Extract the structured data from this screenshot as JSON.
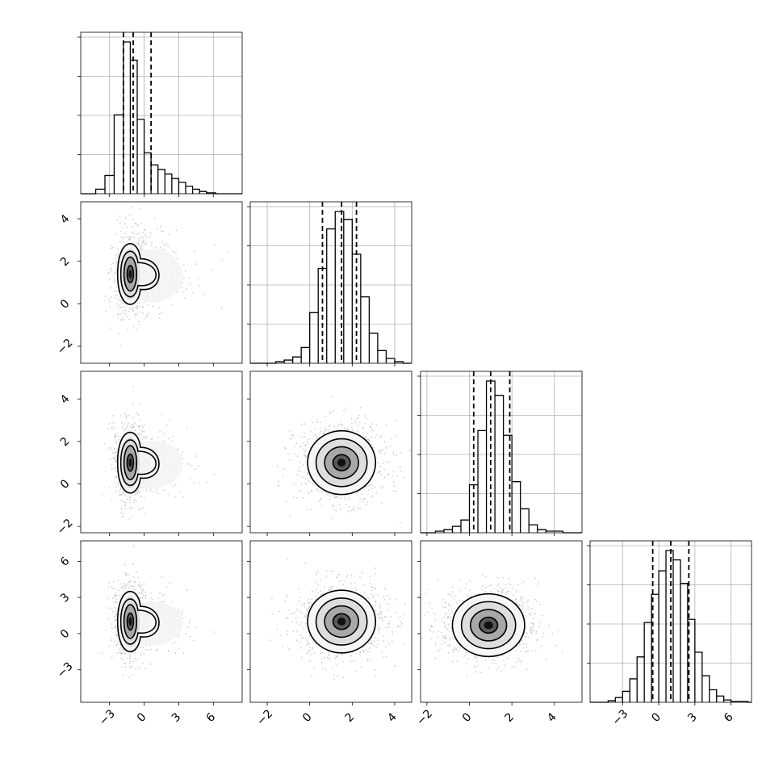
{
  "chart_data": {
    "type": "corner",
    "grid": true,
    "dims": [
      {
        "range": [
          -5.5,
          8.5
        ],
        "ticks": [
          -3,
          0,
          3,
          6
        ],
        "tick_labels": [
          "−3",
          "0",
          "3",
          "6"
        ],
        "quantiles": [
          -1.8,
          -0.95,
          0.6
        ],
        "hist_bins": [
          {
            "x0": -4.2,
            "x1": -3.4,
            "h": 0.03
          },
          {
            "x0": -3.4,
            "x1": -2.6,
            "h": 0.12
          },
          {
            "x0": -2.6,
            "x1": -1.8,
            "h": 0.52
          },
          {
            "x0": -1.8,
            "x1": -1.2,
            "h": 1.0
          },
          {
            "x0": -1.2,
            "x1": -0.6,
            "h": 0.88
          },
          {
            "x0": -0.6,
            "x1": 0.0,
            "h": 0.49
          },
          {
            "x0": 0.0,
            "x1": 0.6,
            "h": 0.27
          },
          {
            "x0": 0.6,
            "x1": 1.2,
            "h": 0.19
          },
          {
            "x0": 1.2,
            "x1": 1.8,
            "h": 0.16
          },
          {
            "x0": 1.8,
            "x1": 2.4,
            "h": 0.13
          },
          {
            "x0": 2.4,
            "x1": 3.0,
            "h": 0.1
          },
          {
            "x0": 3.0,
            "x1": 3.6,
            "h": 0.075
          },
          {
            "x0": 3.6,
            "x1": 4.2,
            "h": 0.05
          },
          {
            "x0": 4.2,
            "x1": 4.8,
            "h": 0.03
          },
          {
            "x0": 4.8,
            "x1": 5.4,
            "h": 0.015
          },
          {
            "x0": 5.4,
            "x1": 6.2,
            "h": 0.006
          }
        ]
      },
      {
        "range": [
          -2.8,
          4.8
        ],
        "ticks": [
          -2,
          0,
          2,
          4
        ],
        "tick_labels": [
          "−2",
          "0",
          "2",
          "4"
        ],
        "quantiles": [
          0.6,
          1.5,
          2.2
        ],
        "hist_bins": [
          {
            "x0": -1.6,
            "x1": -1.2,
            "h": 0.01
          },
          {
            "x0": -1.2,
            "x1": -0.8,
            "h": 0.02
          },
          {
            "x0": -0.8,
            "x1": -0.4,
            "h": 0.04
          },
          {
            "x0": -0.4,
            "x1": 0.0,
            "h": 0.1
          },
          {
            "x0": 0.0,
            "x1": 0.4,
            "h": 0.32
          },
          {
            "x0": 0.4,
            "x1": 0.8,
            "h": 0.6
          },
          {
            "x0": 0.8,
            "x1": 1.2,
            "h": 0.85
          },
          {
            "x0": 1.2,
            "x1": 1.6,
            "h": 0.96
          },
          {
            "x0": 1.6,
            "x1": 2.0,
            "h": 0.91
          },
          {
            "x0": 2.0,
            "x1": 2.4,
            "h": 0.69
          },
          {
            "x0": 2.4,
            "x1": 2.8,
            "h": 0.42
          },
          {
            "x0": 2.8,
            "x1": 3.2,
            "h": 0.19
          },
          {
            "x0": 3.2,
            "x1": 3.6,
            "h": 0.08
          },
          {
            "x0": 3.6,
            "x1": 4.0,
            "h": 0.03
          },
          {
            "x0": 4.0,
            "x1": 4.4,
            "h": 0.01
          }
        ]
      },
      {
        "range": [
          -2.3,
          5.3
        ],
        "ticks": [
          -2,
          0,
          2,
          4
        ],
        "tick_labels": [
          "−2",
          "0",
          "2",
          "4"
        ],
        "quantiles": [
          0.2,
          1.0,
          1.9
        ],
        "hist_bins": [
          {
            "x0": -1.6,
            "x1": -1.2,
            "h": 0.01
          },
          {
            "x0": -1.2,
            "x1": -0.8,
            "h": 0.02
          },
          {
            "x0": -0.8,
            "x1": -0.4,
            "h": 0.04
          },
          {
            "x0": -0.4,
            "x1": 0.0,
            "h": 0.08
          },
          {
            "x0": 0.0,
            "x1": 0.4,
            "h": 0.3
          },
          {
            "x0": 0.4,
            "x1": 0.8,
            "h": 0.64
          },
          {
            "x0": 0.8,
            "x1": 1.2,
            "h": 0.95
          },
          {
            "x0": 1.2,
            "x1": 1.6,
            "h": 0.86
          },
          {
            "x0": 1.6,
            "x1": 2.0,
            "h": 0.61
          },
          {
            "x0": 2.0,
            "x1": 2.4,
            "h": 0.32
          },
          {
            "x0": 2.4,
            "x1": 2.8,
            "h": 0.15
          },
          {
            "x0": 2.8,
            "x1": 3.2,
            "h": 0.05
          },
          {
            "x0": 3.2,
            "x1": 3.6,
            "h": 0.02
          },
          {
            "x0": 3.6,
            "x1": 4.4,
            "h": 0.01
          }
        ]
      },
      {
        "range": [
          -5.7,
          7.7
        ],
        "ticks": [
          -3,
          0,
          3,
          6
        ],
        "tick_labels": [
          "−3",
          "0",
          "3",
          "6"
        ],
        "quantiles": [
          -0.5,
          1.0,
          2.5
        ],
        "hist_bins": [
          {
            "x0": -4.2,
            "x1": -3.6,
            "h": 0.01
          },
          {
            "x0": -3.6,
            "x1": -3.0,
            "h": 0.03
          },
          {
            "x0": -3.0,
            "x1": -2.4,
            "h": 0.07
          },
          {
            "x0": -2.4,
            "x1": -1.8,
            "h": 0.15
          },
          {
            "x0": -1.8,
            "x1": -1.2,
            "h": 0.29
          },
          {
            "x0": -1.2,
            "x1": -0.6,
            "h": 0.51
          },
          {
            "x0": -0.6,
            "x1": 0.0,
            "h": 0.69
          },
          {
            "x0": 0.0,
            "x1": 0.6,
            "h": 0.84
          },
          {
            "x0": 0.6,
            "x1": 1.2,
            "h": 0.97
          },
          {
            "x0": 1.2,
            "x1": 1.8,
            "h": 0.91
          },
          {
            "x0": 1.8,
            "x1": 2.4,
            "h": 0.76
          },
          {
            "x0": 2.4,
            "x1": 3.0,
            "h": 0.53
          },
          {
            "x0": 3.0,
            "x1": 3.6,
            "h": 0.32
          },
          {
            "x0": 3.6,
            "x1": 4.2,
            "h": 0.17
          },
          {
            "x0": 4.2,
            "x1": 4.8,
            "h": 0.08
          },
          {
            "x0": 4.8,
            "x1": 5.4,
            "h": 0.04
          },
          {
            "x0": 5.4,
            "x1": 6.0,
            "h": 0.015
          },
          {
            "x0": 6.0,
            "x1": 7.4,
            "h": 0.005
          }
        ]
      }
    ],
    "pairs": [
      {
        "row": 1,
        "col": 0,
        "center": [
          -1.2,
          1.4
        ],
        "sigma": [
          0.55,
          0.8
        ],
        "tail": {
          "dir": "x",
          "extent": 3.5,
          "spread": 0.9
        }
      },
      {
        "row": 2,
        "col": 0,
        "center": [
          -1.2,
          1.0
        ],
        "sigma": [
          0.55,
          0.8
        ],
        "tail": {
          "dir": "x",
          "extent": 3.5,
          "spread": 0.8
        }
      },
      {
        "row": 2,
        "col": 1,
        "center": [
          1.5,
          1.0
        ],
        "sigma": [
          0.8,
          0.75
        ]
      },
      {
        "row": 3,
        "col": 0,
        "center": [
          -1.2,
          1.0
        ],
        "sigma": [
          0.55,
          1.4
        ],
        "tail": {
          "dir": "x",
          "extent": 3.5,
          "spread": 1.3
        }
      },
      {
        "row": 3,
        "col": 1,
        "center": [
          1.5,
          1.0
        ],
        "sigma": [
          0.8,
          1.3
        ]
      },
      {
        "row": 3,
        "col": 2,
        "center": [
          0.9,
          0.7
        ],
        "sigma": [
          0.85,
          1.3
        ]
      }
    ]
  }
}
